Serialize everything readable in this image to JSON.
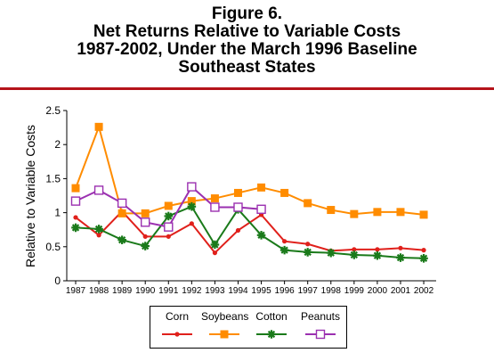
{
  "figure": {
    "title_lines": [
      "Figure 6.",
      "Net Returns Relative to Variable Costs",
      "1987-2002, Under the March 1996 Baseline",
      "Southeast States"
    ]
  },
  "chart_data": {
    "type": "line",
    "title": "Figure 6. Net Returns Relative to Variable Costs 1987-2002, Under the March 1996 Baseline Southeast States",
    "xlabel": "",
    "ylabel": "Relative to Variable Costs",
    "ylim": [
      0,
      2.5
    ],
    "yticks": [
      "0",
      "0.5",
      "1",
      "1.5",
      "2",
      "2.5"
    ],
    "grid": false,
    "legend_position": "bottom",
    "categories": [
      "1987",
      "1988",
      "1989",
      "1990",
      "1991",
      "1992",
      "1993",
      "1994",
      "1995",
      "1996",
      "1997",
      "1998",
      "1999",
      "2000",
      "2001",
      "2002"
    ],
    "series": [
      {
        "name": "Corn",
        "color": "#e0201b",
        "marker": "circle",
        "values": [
          0.93,
          0.67,
          1.02,
          0.65,
          0.65,
          0.84,
          0.41,
          0.74,
          0.97,
          0.58,
          0.54,
          0.44,
          0.46,
          0.46,
          0.48,
          0.45
        ]
      },
      {
        "name": "Soybeans",
        "color": "#ff8c00",
        "marker": "square",
        "values": [
          1.36,
          2.26,
          0.99,
          0.99,
          1.1,
          1.17,
          1.21,
          1.29,
          1.37,
          1.29,
          1.14,
          1.04,
          0.98,
          1.01,
          1.01,
          0.97
        ]
      },
      {
        "name": "Cotton",
        "color": "#1a7a1a",
        "marker": "star",
        "values": [
          0.78,
          0.76,
          0.6,
          0.51,
          0.95,
          1.09,
          0.53,
          1.05,
          0.67,
          0.45,
          0.42,
          0.41,
          0.38,
          0.37,
          0.34,
          0.33
        ]
      },
      {
        "name": "Peanuts",
        "color": "#9b30b0",
        "marker": "open-square",
        "values": [
          1.17,
          1.33,
          1.14,
          0.86,
          0.79,
          1.38,
          1.08,
          1.08,
          1.05,
          null,
          null,
          null,
          null,
          null,
          null,
          null
        ]
      }
    ]
  },
  "colors": {
    "rule": "#b5131b"
  }
}
